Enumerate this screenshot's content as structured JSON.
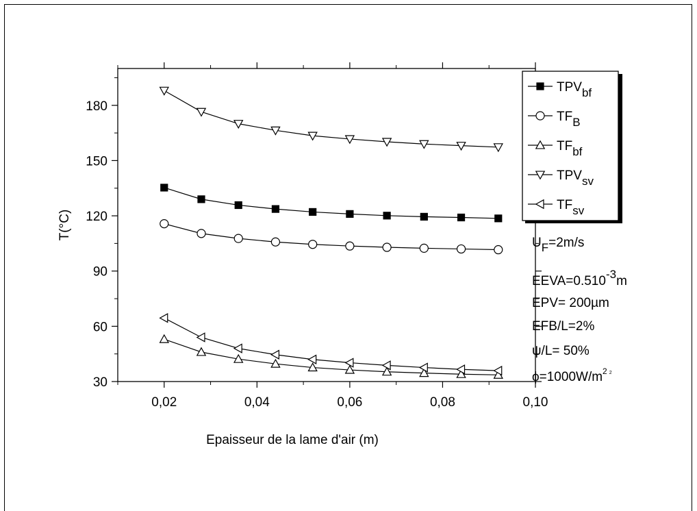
{
  "chart_data": {
    "type": "line",
    "title": "",
    "xlabel": "Epaisseur de la lame d'air (m)",
    "ylabel": "T(°C)",
    "xlim": [
      0.01,
      0.1
    ],
    "ylim": [
      30,
      200
    ],
    "xticks": [
      0.02,
      0.04,
      0.06,
      0.08,
      0.1
    ],
    "xtick_labels": [
      "0,02",
      "0,04",
      "0,06",
      "0,08",
      "0,10"
    ],
    "yticks": [
      30,
      60,
      90,
      120,
      150,
      180
    ],
    "ytick_labels": [
      "30",
      "60",
      "90",
      "120",
      "150",
      "180"
    ],
    "x": [
      0.02,
      0.028,
      0.036,
      0.044,
      0.052,
      0.06,
      0.068,
      0.076,
      0.084,
      0.092
    ],
    "series": [
      {
        "name": "TPVbf",
        "label_main": "TPV",
        "label_sub": "bf",
        "marker": "square-filled",
        "values": [
          135.3,
          129.0,
          125.8,
          123.7,
          122.1,
          121.0,
          120.1,
          119.5,
          119.1,
          118.6
        ]
      },
      {
        "name": "TFB",
        "label_main": "TF",
        "label_sub": "B",
        "marker": "circle-open",
        "values": [
          115.7,
          110.4,
          107.7,
          105.8,
          104.5,
          103.6,
          102.9,
          102.4,
          102.0,
          101.6
        ]
      },
      {
        "name": "TFbf",
        "label_main": "TF",
        "label_sub": "bf",
        "marker": "triangle-up-open",
        "values": [
          53.0,
          46.0,
          42.2,
          39.6,
          37.6,
          36.3,
          35.3,
          34.6,
          34.0,
          33.6
        ]
      },
      {
        "name": "TPVsv",
        "label_main": "TPV",
        "label_sub": "sv",
        "marker": "triangle-down-open",
        "values": [
          188.0,
          176.5,
          170.0,
          166.4,
          163.5,
          161.7,
          160.2,
          159.0,
          158.1,
          157.3
        ]
      },
      {
        "name": "TFsv",
        "label_main": "TF",
        "label_sub": "sv",
        "marker": "triangle-left-open",
        "values": [
          64.5,
          54.0,
          48.0,
          44.6,
          42.0,
          40.2,
          38.8,
          37.6,
          36.6,
          35.9
        ]
      }
    ],
    "legend_position": "top-right",
    "annotations": {
      "uf": {
        "main": "U",
        "sub": "F",
        "rest": "=2m/s"
      },
      "eeva": {
        "main": "EEVA=0.510",
        "sup": "-3",
        "rest": "m"
      },
      "epv": "EPV= 200µm",
      "efb": "EFB/L=2%",
      "psi": "ψ/L= 50%",
      "phi": {
        "main": "ϕ=1000W/m",
        "sup": "2",
        "sup2": "2"
      }
    }
  }
}
